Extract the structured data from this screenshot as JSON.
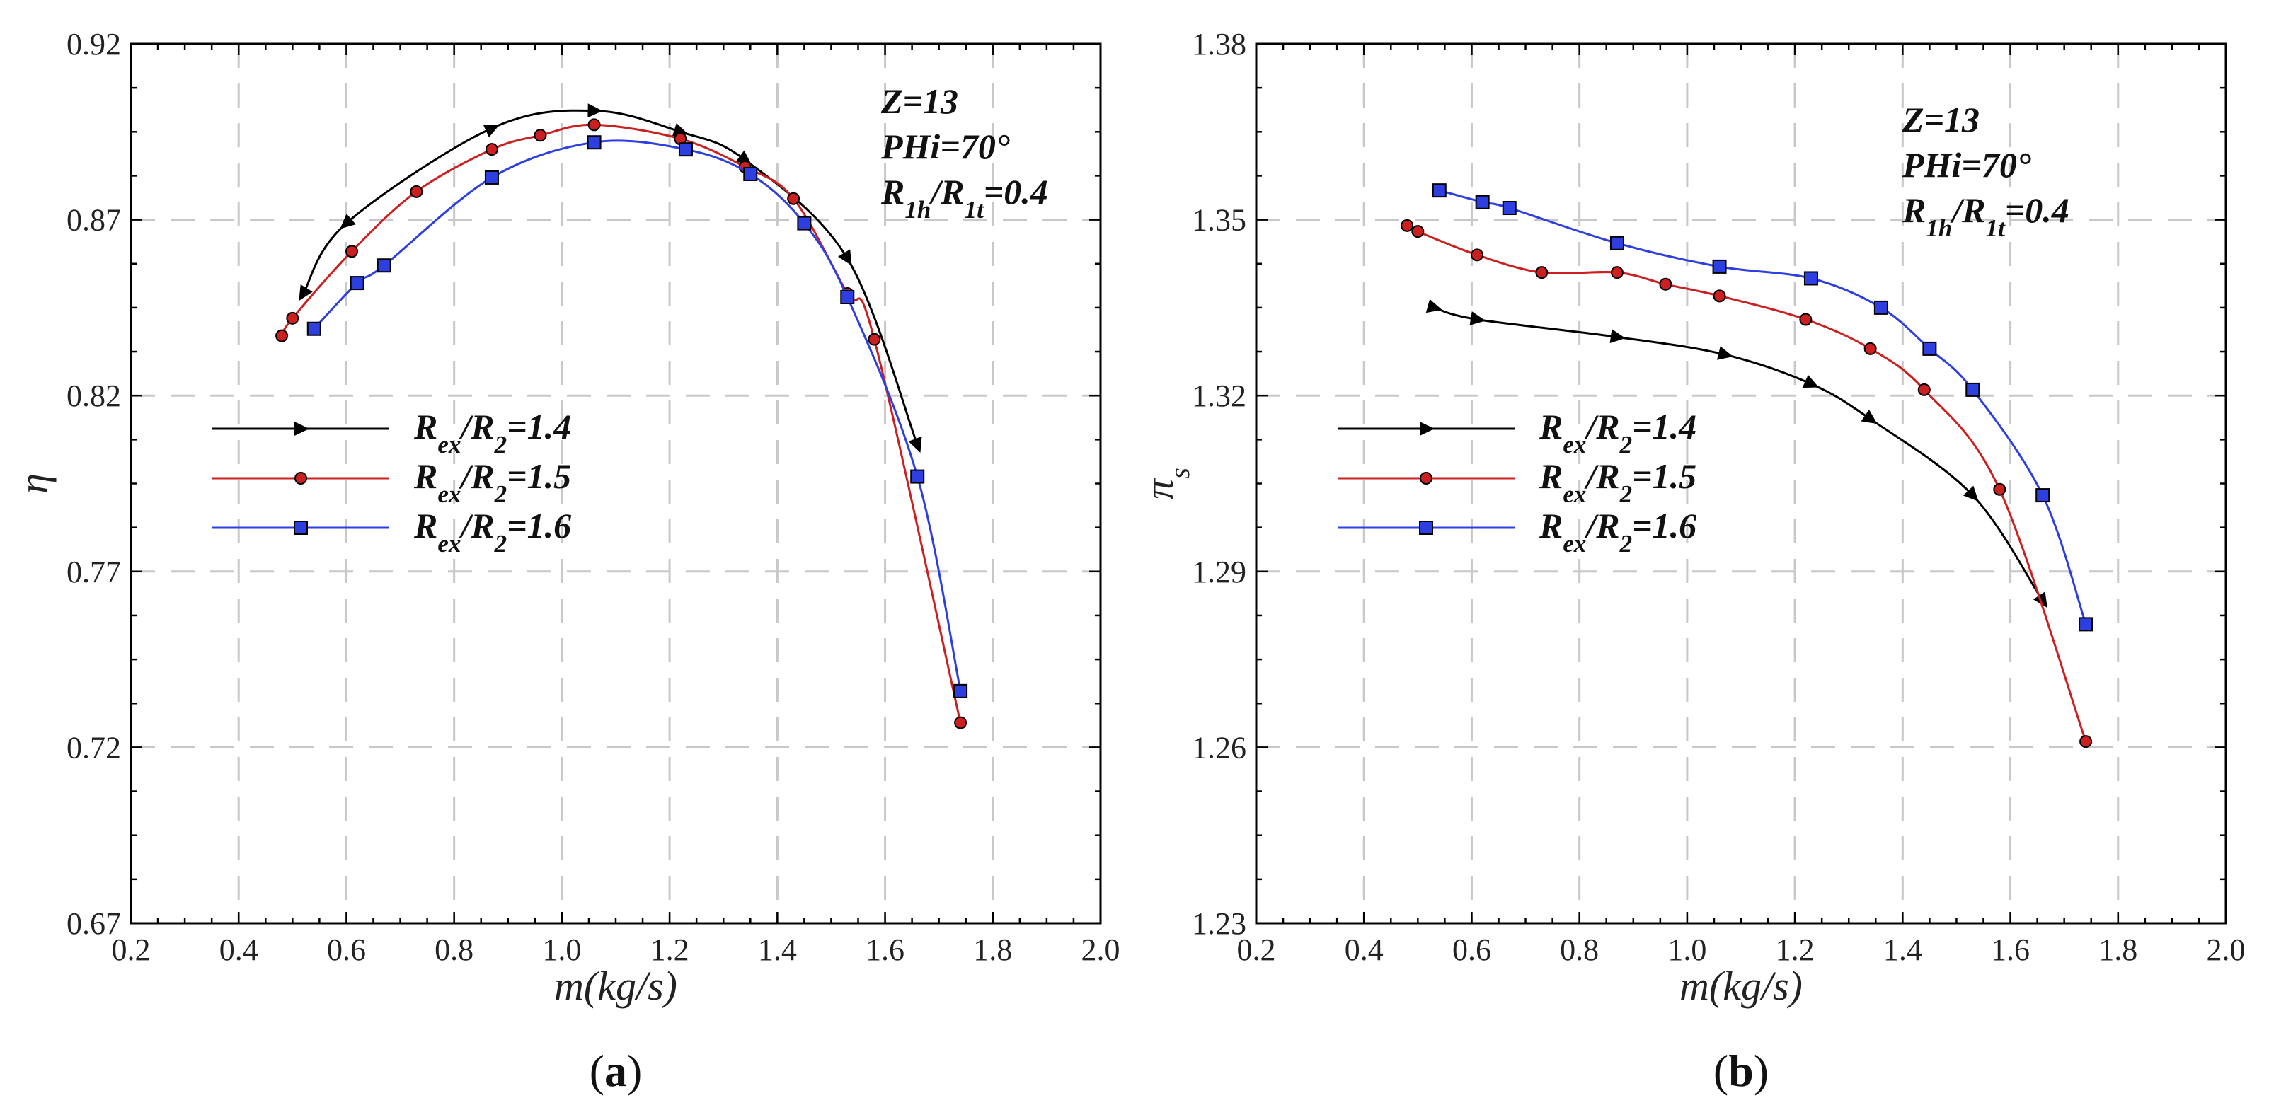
{
  "chart_data": [
    {
      "type": "line",
      "panel_label": "(a)",
      "xlabel": "m(kg/s)",
      "ylabel": "η",
      "xlim": [
        0.2,
        2.0
      ],
      "ylim": [
        0.67,
        0.92
      ],
      "xticks": [
        0.2,
        0.4,
        0.6,
        0.8,
        1.0,
        1.2,
        1.4,
        1.6,
        1.8,
        2.0
      ],
      "xtick_labels": [
        "0.2",
        "0.4",
        "0.6",
        "0.8",
        "1.0",
        "1.2",
        "1.4",
        "1.6",
        "1.8",
        "2.0"
      ],
      "yticks": [
        0.67,
        0.72,
        0.77,
        0.82,
        0.87,
        0.92
      ],
      "ytick_labels": [
        "0.67",
        "0.72",
        "0.77",
        "0.82",
        "0.87",
        "0.92"
      ],
      "grid": true,
      "legend_position": "left-middle",
      "annotations": [
        "Z=13",
        "PHi=70°",
        "R1h/R1t=0.4"
      ],
      "series": [
        {
          "name": "Rex/R2=1.4",
          "color": "#000000",
          "marker": "triangle-right",
          "x": [
            0.52,
            0.6,
            0.87,
            1.06,
            1.22,
            1.34,
            1.53,
            1.66
          ],
          "y": [
            0.849,
            0.869,
            0.896,
            0.901,
            0.895,
            0.887,
            0.859,
            0.806
          ],
          "direction": "from-right"
        },
        {
          "name": "Rex/R2=1.5",
          "color": "#cc1f1f",
          "marker": "circle",
          "x": [
            0.48,
            0.5,
            0.61,
            0.73,
            0.87,
            0.96,
            1.06,
            1.22,
            1.34,
            1.43,
            1.53,
            1.58,
            1.74
          ],
          "y": [
            0.837,
            0.842,
            0.861,
            0.878,
            0.89,
            0.894,
            0.897,
            0.893,
            0.885,
            0.876,
            0.849,
            0.836,
            0.727
          ]
        },
        {
          "name": "Rex/R2=1.6",
          "color": "#2d3fe0",
          "marker": "square",
          "x": [
            0.54,
            0.62,
            0.67,
            0.87,
            1.06,
            1.23,
            1.35,
            1.45,
            1.53,
            1.66,
            1.74
          ],
          "y": [
            0.839,
            0.852,
            0.857,
            0.882,
            0.892,
            0.89,
            0.883,
            0.869,
            0.848,
            0.797,
            0.736
          ]
        }
      ]
    },
    {
      "type": "line",
      "panel_label": "(b)",
      "xlabel": "m(kg/s)",
      "ylabel": "πs",
      "xlim": [
        0.2,
        2.0
      ],
      "ylim": [
        1.23,
        1.38
      ],
      "xticks": [
        0.2,
        0.4,
        0.6,
        0.8,
        1.0,
        1.2,
        1.4,
        1.6,
        1.8,
        2.0
      ],
      "xtick_labels": [
        "0.2",
        "0.4",
        "0.6",
        "0.8",
        "1.0",
        "1.2",
        "1.4",
        "1.6",
        "1.8",
        "2.0"
      ],
      "yticks": [
        1.23,
        1.26,
        1.29,
        1.32,
        1.35,
        1.38
      ],
      "ytick_labels": [
        "1.23",
        "1.26",
        "1.29",
        "1.32",
        "1.35",
        "1.38"
      ],
      "grid": true,
      "legend_position": "left-middle",
      "annotations": [
        "Z=13",
        "PHi=70°",
        "R1h/R1t=0.4"
      ],
      "series": [
        {
          "name": "Rex/R2=1.4",
          "color": "#000000",
          "marker": "triangle-right",
          "x": [
            0.53,
            0.61,
            0.87,
            1.07,
            1.23,
            1.34,
            1.53,
            1.66
          ],
          "y": [
            1.335,
            1.333,
            1.33,
            1.327,
            1.322,
            1.316,
            1.303,
            1.285
          ]
        },
        {
          "name": "Rex/R2=1.5",
          "color": "#cc1f1f",
          "marker": "circle",
          "x": [
            0.48,
            0.5,
            0.61,
            0.73,
            0.87,
            0.96,
            1.06,
            1.22,
            1.34,
            1.44,
            1.58,
            1.74
          ],
          "y": [
            1.349,
            1.348,
            1.344,
            1.341,
            1.341,
            1.339,
            1.337,
            1.333,
            1.328,
            1.321,
            1.304,
            1.261
          ]
        },
        {
          "name": "Rex/R2=1.6",
          "color": "#2d3fe0",
          "marker": "square",
          "x": [
            0.54,
            0.62,
            0.67,
            0.87,
            1.06,
            1.23,
            1.36,
            1.45,
            1.53,
            1.66,
            1.74
          ],
          "y": [
            1.355,
            1.353,
            1.352,
            1.346,
            1.342,
            1.34,
            1.335,
            1.328,
            1.321,
            1.303,
            1.281
          ]
        }
      ]
    }
  ]
}
